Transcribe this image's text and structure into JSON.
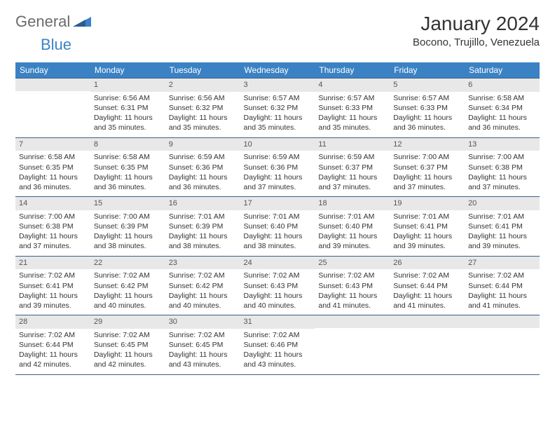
{
  "logo": {
    "part1": "General",
    "part2": "Blue"
  },
  "title": "January 2024",
  "location": "Bocono, Trujillo, Venezuela",
  "day_headers": [
    "Sunday",
    "Monday",
    "Tuesday",
    "Wednesday",
    "Thursday",
    "Friday",
    "Saturday"
  ],
  "colors": {
    "header_bg": "#3b82c4",
    "header_text": "#ffffff",
    "border": "#3b5f8a",
    "daynum_bg": "#e8e8e8",
    "text": "#333333"
  },
  "weeks": [
    [
      null,
      {
        "n": "1",
        "sr": "Sunrise: 6:56 AM",
        "ss": "Sunset: 6:31 PM",
        "d1": "Daylight: 11 hours",
        "d2": "and 35 minutes."
      },
      {
        "n": "2",
        "sr": "Sunrise: 6:56 AM",
        "ss": "Sunset: 6:32 PM",
        "d1": "Daylight: 11 hours",
        "d2": "and 35 minutes."
      },
      {
        "n": "3",
        "sr": "Sunrise: 6:57 AM",
        "ss": "Sunset: 6:32 PM",
        "d1": "Daylight: 11 hours",
        "d2": "and 35 minutes."
      },
      {
        "n": "4",
        "sr": "Sunrise: 6:57 AM",
        "ss": "Sunset: 6:33 PM",
        "d1": "Daylight: 11 hours",
        "d2": "and 35 minutes."
      },
      {
        "n": "5",
        "sr": "Sunrise: 6:57 AM",
        "ss": "Sunset: 6:33 PM",
        "d1": "Daylight: 11 hours",
        "d2": "and 36 minutes."
      },
      {
        "n": "6",
        "sr": "Sunrise: 6:58 AM",
        "ss": "Sunset: 6:34 PM",
        "d1": "Daylight: 11 hours",
        "d2": "and 36 minutes."
      }
    ],
    [
      {
        "n": "7",
        "sr": "Sunrise: 6:58 AM",
        "ss": "Sunset: 6:35 PM",
        "d1": "Daylight: 11 hours",
        "d2": "and 36 minutes."
      },
      {
        "n": "8",
        "sr": "Sunrise: 6:58 AM",
        "ss": "Sunset: 6:35 PM",
        "d1": "Daylight: 11 hours",
        "d2": "and 36 minutes."
      },
      {
        "n": "9",
        "sr": "Sunrise: 6:59 AM",
        "ss": "Sunset: 6:36 PM",
        "d1": "Daylight: 11 hours",
        "d2": "and 36 minutes."
      },
      {
        "n": "10",
        "sr": "Sunrise: 6:59 AM",
        "ss": "Sunset: 6:36 PM",
        "d1": "Daylight: 11 hours",
        "d2": "and 37 minutes."
      },
      {
        "n": "11",
        "sr": "Sunrise: 6:59 AM",
        "ss": "Sunset: 6:37 PM",
        "d1": "Daylight: 11 hours",
        "d2": "and 37 minutes."
      },
      {
        "n": "12",
        "sr": "Sunrise: 7:00 AM",
        "ss": "Sunset: 6:37 PM",
        "d1": "Daylight: 11 hours",
        "d2": "and 37 minutes."
      },
      {
        "n": "13",
        "sr": "Sunrise: 7:00 AM",
        "ss": "Sunset: 6:38 PM",
        "d1": "Daylight: 11 hours",
        "d2": "and 37 minutes."
      }
    ],
    [
      {
        "n": "14",
        "sr": "Sunrise: 7:00 AM",
        "ss": "Sunset: 6:38 PM",
        "d1": "Daylight: 11 hours",
        "d2": "and 37 minutes."
      },
      {
        "n": "15",
        "sr": "Sunrise: 7:00 AM",
        "ss": "Sunset: 6:39 PM",
        "d1": "Daylight: 11 hours",
        "d2": "and 38 minutes."
      },
      {
        "n": "16",
        "sr": "Sunrise: 7:01 AM",
        "ss": "Sunset: 6:39 PM",
        "d1": "Daylight: 11 hours",
        "d2": "and 38 minutes."
      },
      {
        "n": "17",
        "sr": "Sunrise: 7:01 AM",
        "ss": "Sunset: 6:40 PM",
        "d1": "Daylight: 11 hours",
        "d2": "and 38 minutes."
      },
      {
        "n": "18",
        "sr": "Sunrise: 7:01 AM",
        "ss": "Sunset: 6:40 PM",
        "d1": "Daylight: 11 hours",
        "d2": "and 39 minutes."
      },
      {
        "n": "19",
        "sr": "Sunrise: 7:01 AM",
        "ss": "Sunset: 6:41 PM",
        "d1": "Daylight: 11 hours",
        "d2": "and 39 minutes."
      },
      {
        "n": "20",
        "sr": "Sunrise: 7:01 AM",
        "ss": "Sunset: 6:41 PM",
        "d1": "Daylight: 11 hours",
        "d2": "and 39 minutes."
      }
    ],
    [
      {
        "n": "21",
        "sr": "Sunrise: 7:02 AM",
        "ss": "Sunset: 6:41 PM",
        "d1": "Daylight: 11 hours",
        "d2": "and 39 minutes."
      },
      {
        "n": "22",
        "sr": "Sunrise: 7:02 AM",
        "ss": "Sunset: 6:42 PM",
        "d1": "Daylight: 11 hours",
        "d2": "and 40 minutes."
      },
      {
        "n": "23",
        "sr": "Sunrise: 7:02 AM",
        "ss": "Sunset: 6:42 PM",
        "d1": "Daylight: 11 hours",
        "d2": "and 40 minutes."
      },
      {
        "n": "24",
        "sr": "Sunrise: 7:02 AM",
        "ss": "Sunset: 6:43 PM",
        "d1": "Daylight: 11 hours",
        "d2": "and 40 minutes."
      },
      {
        "n": "25",
        "sr": "Sunrise: 7:02 AM",
        "ss": "Sunset: 6:43 PM",
        "d1": "Daylight: 11 hours",
        "d2": "and 41 minutes."
      },
      {
        "n": "26",
        "sr": "Sunrise: 7:02 AM",
        "ss": "Sunset: 6:44 PM",
        "d1": "Daylight: 11 hours",
        "d2": "and 41 minutes."
      },
      {
        "n": "27",
        "sr": "Sunrise: 7:02 AM",
        "ss": "Sunset: 6:44 PM",
        "d1": "Daylight: 11 hours",
        "d2": "and 41 minutes."
      }
    ],
    [
      {
        "n": "28",
        "sr": "Sunrise: 7:02 AM",
        "ss": "Sunset: 6:44 PM",
        "d1": "Daylight: 11 hours",
        "d2": "and 42 minutes."
      },
      {
        "n": "29",
        "sr": "Sunrise: 7:02 AM",
        "ss": "Sunset: 6:45 PM",
        "d1": "Daylight: 11 hours",
        "d2": "and 42 minutes."
      },
      {
        "n": "30",
        "sr": "Sunrise: 7:02 AM",
        "ss": "Sunset: 6:45 PM",
        "d1": "Daylight: 11 hours",
        "d2": "and 43 minutes."
      },
      {
        "n": "31",
        "sr": "Sunrise: 7:02 AM",
        "ss": "Sunset: 6:46 PM",
        "d1": "Daylight: 11 hours",
        "d2": "and 43 minutes."
      },
      null,
      null,
      null
    ]
  ]
}
